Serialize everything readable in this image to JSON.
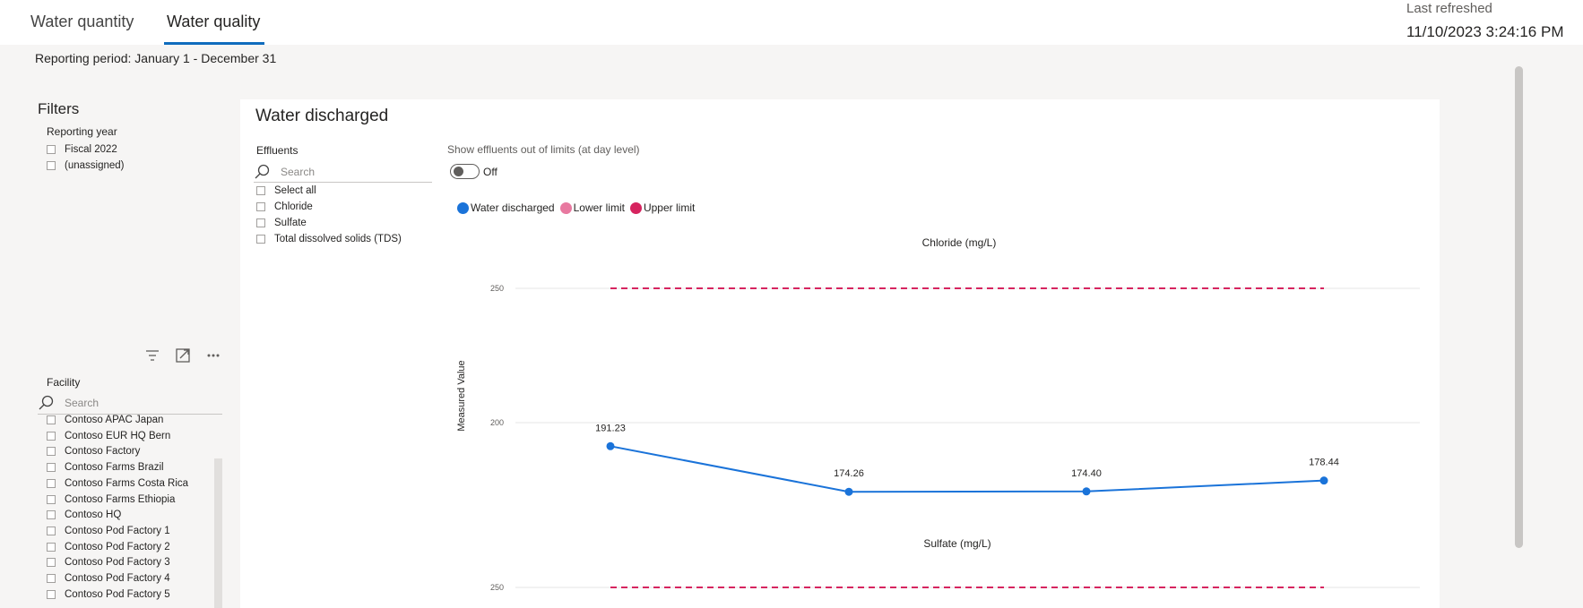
{
  "tabs": [
    {
      "label": "Water quantity"
    },
    {
      "label": "Water quality"
    }
  ],
  "last_refreshed": {
    "label": "Last refreshed",
    "value": "11/10/2023 3:24:16 PM"
  },
  "reporting_period": "Reporting period: January 1 - December 31",
  "filters": {
    "title": "Filters",
    "reporting_year": {
      "label": "Reporting year",
      "options": [
        "Fiscal 2022",
        "(unassigned)"
      ]
    },
    "facility": {
      "label": "Facility",
      "search_placeholder": "Search",
      "options": [
        "Contoso APAC Japan",
        "Contoso EUR HQ Bern",
        "Contoso Factory",
        "Contoso Farms Brazil",
        "Contoso Farms Costa Rica",
        "Contoso Farms Ethiopia",
        "Contoso HQ",
        "Contoso Pod Factory 1",
        "Contoso Pod Factory 2",
        "Contoso Pod Factory 3",
        "Contoso Pod Factory 4",
        "Contoso Pod Factory 5"
      ]
    },
    "icons": [
      "filter-icon",
      "expand-icon",
      "more-options-icon"
    ]
  },
  "panel": {
    "title": "Water discharged",
    "effluents": {
      "label": "Effluents",
      "search_placeholder": "Search",
      "options": [
        "Select all",
        "Chloride",
        "Sulfate",
        "Total dissolved solids (TDS)"
      ]
    },
    "toggle": {
      "label": "Show effluents out of limits (at day level)",
      "state": "Off"
    }
  },
  "colors": {
    "water_discharged": "#1a73d9",
    "lower_limit": "#e879a0",
    "upper_limit": "#d6245f"
  },
  "chart_data": [
    {
      "type": "line",
      "title": "Chloride (mg/L)",
      "ylabel": "Measured Value",
      "ticks": [
        "250",
        "200"
      ],
      "legend": [
        "Water discharged",
        "Lower limit",
        "Upper limit"
      ],
      "series": [
        {
          "name": "Water discharged",
          "values": [
            191.23,
            174.26,
            174.4,
            178.44
          ],
          "labels": [
            "191.23",
            "174.26",
            "174.40",
            "178.44"
          ]
        },
        {
          "name": "Upper limit",
          "values": [
            250,
            250,
            250,
            250
          ]
        }
      ]
    },
    {
      "type": "line",
      "title": "Sulfate (mg/L)",
      "ticks": [
        "250"
      ],
      "series": [
        {
          "name": "Upper limit",
          "values": [
            250,
            250,
            250,
            250
          ]
        }
      ]
    }
  ]
}
